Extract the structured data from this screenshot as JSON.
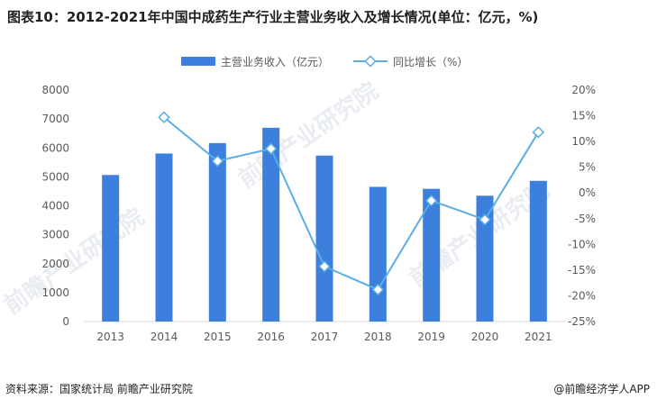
{
  "title": "图表10：2012-2021年中国中成药生产行业主营业务收入及增长情况(单位：亿元，%)",
  "footer": {
    "source": "资料来源：国家统计局 前瞻产业研究院",
    "brand": "@前瞻经济学人APP"
  },
  "watermark": "前瞻产业研究院",
  "colors": {
    "bar": "#3d7fdc",
    "line": "#5aaee6",
    "grid": "#d9d9d9",
    "text": "#595959"
  },
  "chart_data": {
    "type": "bar+line",
    "categories": [
      "2013",
      "2014",
      "2015",
      "2016",
      "2017",
      "2018",
      "2019",
      "2020",
      "2021"
    ],
    "series": [
      {
        "name": "主营业务收入（亿元）",
        "type": "bar",
        "axis": "left",
        "values": [
          5065,
          5807,
          6167,
          6697,
          5736,
          4655,
          4587,
          4348,
          4862
        ]
      },
      {
        "name": "同比增长（%）",
        "type": "line",
        "axis": "right",
        "values": [
          null,
          14.7,
          6.2,
          8.6,
          -14.3,
          -18.8,
          -1.5,
          -5.2,
          11.8
        ]
      }
    ],
    "yLeft": {
      "min": 0,
      "max": 8000,
      "step": 1000,
      "ticks": [
        "0",
        "1000",
        "2000",
        "3000",
        "4000",
        "5000",
        "6000",
        "7000",
        "8000"
      ]
    },
    "yRight": {
      "min": -25,
      "max": 20,
      "step": 5,
      "ticks": [
        "-25%",
        "-20%",
        "-15%",
        "-10%",
        "-5%",
        "0%",
        "5%",
        "10%",
        "15%",
        "20%"
      ]
    },
    "legend": [
      "主营业务收入（亿元）",
      "同比增长（%）"
    ]
  }
}
